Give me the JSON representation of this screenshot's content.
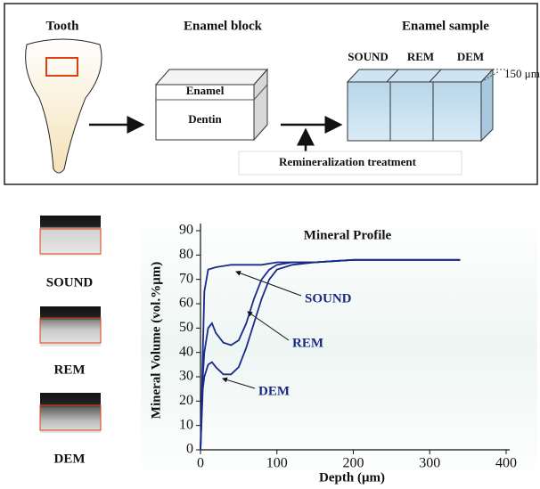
{
  "diagram": {
    "panels": [
      {
        "title": "Tooth"
      },
      {
        "title": "Enamel block",
        "layers": [
          "Enamel",
          "Dentin"
        ]
      },
      {
        "title": "Enamel sample",
        "columns": [
          "SOUND",
          "REM",
          "DEM"
        ],
        "thickness": "150 μm"
      }
    ],
    "treatment": "Remineralization treatment"
  },
  "images": {
    "labels": [
      "SOUND",
      "REM",
      "DEM"
    ]
  },
  "chart_data": {
    "type": "line",
    "title": "Mineral Profile",
    "x_label": "Depth (μm)",
    "y_label": "Mineral Volume (vol.%μm)",
    "xlim": [
      0,
      400
    ],
    "xticks": [
      0,
      100,
      200,
      300,
      400
    ],
    "ylim": [
      0,
      90
    ],
    "yticks": [
      0,
      10,
      20,
      30,
      40,
      50,
      60,
      70,
      80,
      90
    ],
    "series": [
      {
        "name": "SOUND",
        "color": "#1a2a8a",
        "x": [
          0,
          3,
          5,
          10,
          20,
          40,
          60,
          80,
          100,
          150,
          200,
          250,
          300,
          340
        ],
        "values": [
          0,
          40,
          65,
          74,
          75,
          76,
          76,
          76,
          77,
          77,
          78,
          78,
          78,
          78
        ]
      },
      {
        "name": "REM",
        "color": "#1a2a8a",
        "x": [
          0,
          3,
          5,
          10,
          15,
          20,
          30,
          40,
          50,
          60,
          70,
          80,
          90,
          100,
          120,
          150,
          200,
          250,
          300,
          340
        ],
        "values": [
          0,
          30,
          40,
          50,
          52,
          48,
          44,
          43,
          45,
          52,
          62,
          70,
          74,
          76,
          77,
          77,
          78,
          78,
          78,
          78
        ]
      },
      {
        "name": "DEM",
        "color": "#1a2a8a",
        "x": [
          0,
          3,
          5,
          10,
          15,
          20,
          30,
          40,
          50,
          60,
          70,
          80,
          90,
          100,
          120,
          150,
          200,
          250,
          300,
          340
        ],
        "values": [
          0,
          25,
          30,
          35,
          36,
          34,
          31,
          31,
          34,
          42,
          52,
          62,
          70,
          74,
          76,
          77,
          78,
          78,
          78,
          78
        ]
      }
    ]
  }
}
